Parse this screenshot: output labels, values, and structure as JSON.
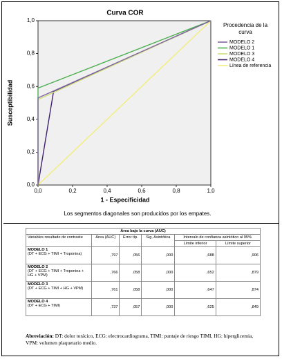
{
  "chart_data": {
    "type": "line",
    "title": "Curva COR",
    "xlabel": "1 - Especificidad",
    "ylabel": "Susceptibilidad",
    "note": "Los segmentos diagonales son producidos por los empates.",
    "legend_title": "Procedencia de la curva",
    "xlim": [
      0,
      1
    ],
    "ylim": [
      0,
      1
    ],
    "xticks": [
      {
        "value": 0,
        "label": "0,0"
      },
      {
        "value": 0.2,
        "label": "0,2"
      },
      {
        "value": 0.4,
        "label": "0,4"
      },
      {
        "value": 0.6,
        "label": "0,6"
      },
      {
        "value": 0.8,
        "label": "0,8"
      },
      {
        "value": 1,
        "label": "1,0"
      }
    ],
    "yticks": [
      {
        "value": 0,
        "label": "0,0"
      },
      {
        "value": 0.2,
        "label": "0,2"
      },
      {
        "value": 0.4,
        "label": "0,4"
      },
      {
        "value": 0.6,
        "label": "0,6"
      },
      {
        "value": 0.8,
        "label": "0,8"
      },
      {
        "value": 1,
        "label": "1,0"
      }
    ],
    "series": [
      {
        "name": "MODELO 2",
        "color": "#8064a2",
        "x": [
          0,
          0,
          1
        ],
        "values": [
          0,
          0.53,
          1
        ]
      },
      {
        "name": "MODELO 1",
        "color": "#4caf50",
        "x": [
          0,
          0,
          1
        ],
        "values": [
          0,
          0.59,
          1
        ]
      },
      {
        "name": "MODELO 3",
        "color": "#cfe07a",
        "x": [
          0,
          0,
          1
        ],
        "values": [
          0,
          0.52,
          1
        ]
      },
      {
        "name": "MODELO 4",
        "color": "#40206e",
        "x": [
          0,
          0.09,
          1
        ],
        "values": [
          0,
          0.57,
          1
        ]
      },
      {
        "name": "Línea de referencia",
        "color": "#f2ee7a",
        "x": [
          0,
          1
        ],
        "values": [
          0,
          1
        ]
      }
    ]
  },
  "table": {
    "title": "Área bajo la curva (AUC)",
    "columns": [
      "Variables resultado de contraste",
      "Área (AUC)",
      "Error típ.",
      "Sig. Asintótica",
      "Límite inferior",
      "Límite superior"
    ],
    "ci_header": "Intervalo de confianza asintótico al 95%",
    "rows": [
      [
        "MODELO 1",
        "(DT + ECG + TIMI + Troponina)",
        ",797",
        ",056",
        ",000",
        ",688",
        ",906"
      ],
      [
        "MODELO 2",
        "(DT + ECG + TIMI + Troponina + HG + VPM)",
        ",766",
        ",058",
        ",000",
        ",652",
        ",879"
      ],
      [
        "MODELO 3",
        "(DT + ECG + TIMI + HG + VPM)",
        ",761",
        ",058",
        ",000",
        ",647",
        ",874"
      ],
      [
        "MODELO 4",
        "(DT + ECG + TIMI)",
        ",737",
        ",057",
        ",000",
        ",625",
        ",849"
      ]
    ]
  },
  "footnote": {
    "label": "Abreviación:",
    "text": "DT: dolor torácico, ECG: electrocardiograma, TIMI: puntaje de riesgo TIMI, HG: hiperglicemia, VPM: volumen plaquetario medio."
  }
}
